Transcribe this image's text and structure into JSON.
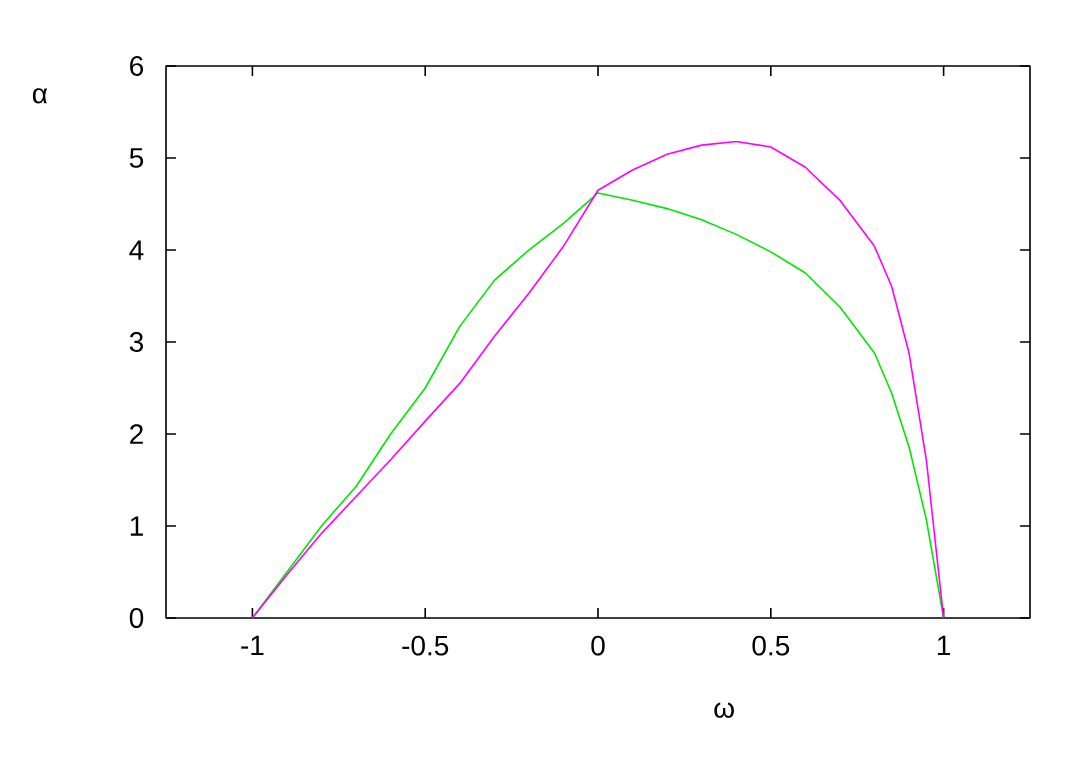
{
  "chart_data": {
    "type": "line",
    "xlabel": "ω",
    "ylabel": "α",
    "xlim": [
      -1.25,
      1.25
    ],
    "ylim": [
      0,
      6
    ],
    "xticks": [
      -1,
      -0.5,
      0,
      0.5,
      1
    ],
    "yticks": [
      0,
      1,
      2,
      3,
      4,
      5,
      6
    ],
    "marker": "none",
    "line_style": "solid",
    "series": [
      {
        "color": "#00e600",
        "x": [
          -1,
          -0.9,
          -0.8,
          -0.7,
          -0.6,
          -0.5,
          -0.4,
          -0.3,
          -0.2,
          -0.1,
          0,
          0.1,
          0.2,
          0.3,
          0.4,
          0.5,
          0.6,
          0.7,
          0.8,
          0.85,
          0.9,
          0.95,
          1
        ],
        "values": [
          0,
          0.5,
          1.0,
          1.43,
          2.0,
          2.5,
          3.17,
          3.67,
          4.0,
          4.29,
          4.62,
          4.54,
          4.45,
          4.33,
          4.17,
          3.98,
          3.75,
          3.38,
          2.88,
          2.44,
          1.86,
          1.07,
          0
        ]
      },
      {
        "color": "#ff00ff",
        "x": [
          -1,
          -0.9,
          -0.8,
          -0.7,
          -0.6,
          -0.5,
          -0.4,
          -0.3,
          -0.2,
          -0.1,
          0,
          0.1,
          0.2,
          0.3,
          0.4,
          0.5,
          0.6,
          0.7,
          0.8,
          0.85,
          0.9,
          0.95,
          1
        ],
        "values": [
          0,
          0.47,
          0.92,
          1.32,
          1.72,
          2.14,
          2.55,
          3.06,
          3.53,
          4.04,
          4.65,
          4.87,
          5.04,
          5.14,
          5.18,
          5.12,
          4.9,
          4.54,
          4.04,
          3.6,
          2.88,
          1.72,
          0
        ]
      }
    ]
  }
}
